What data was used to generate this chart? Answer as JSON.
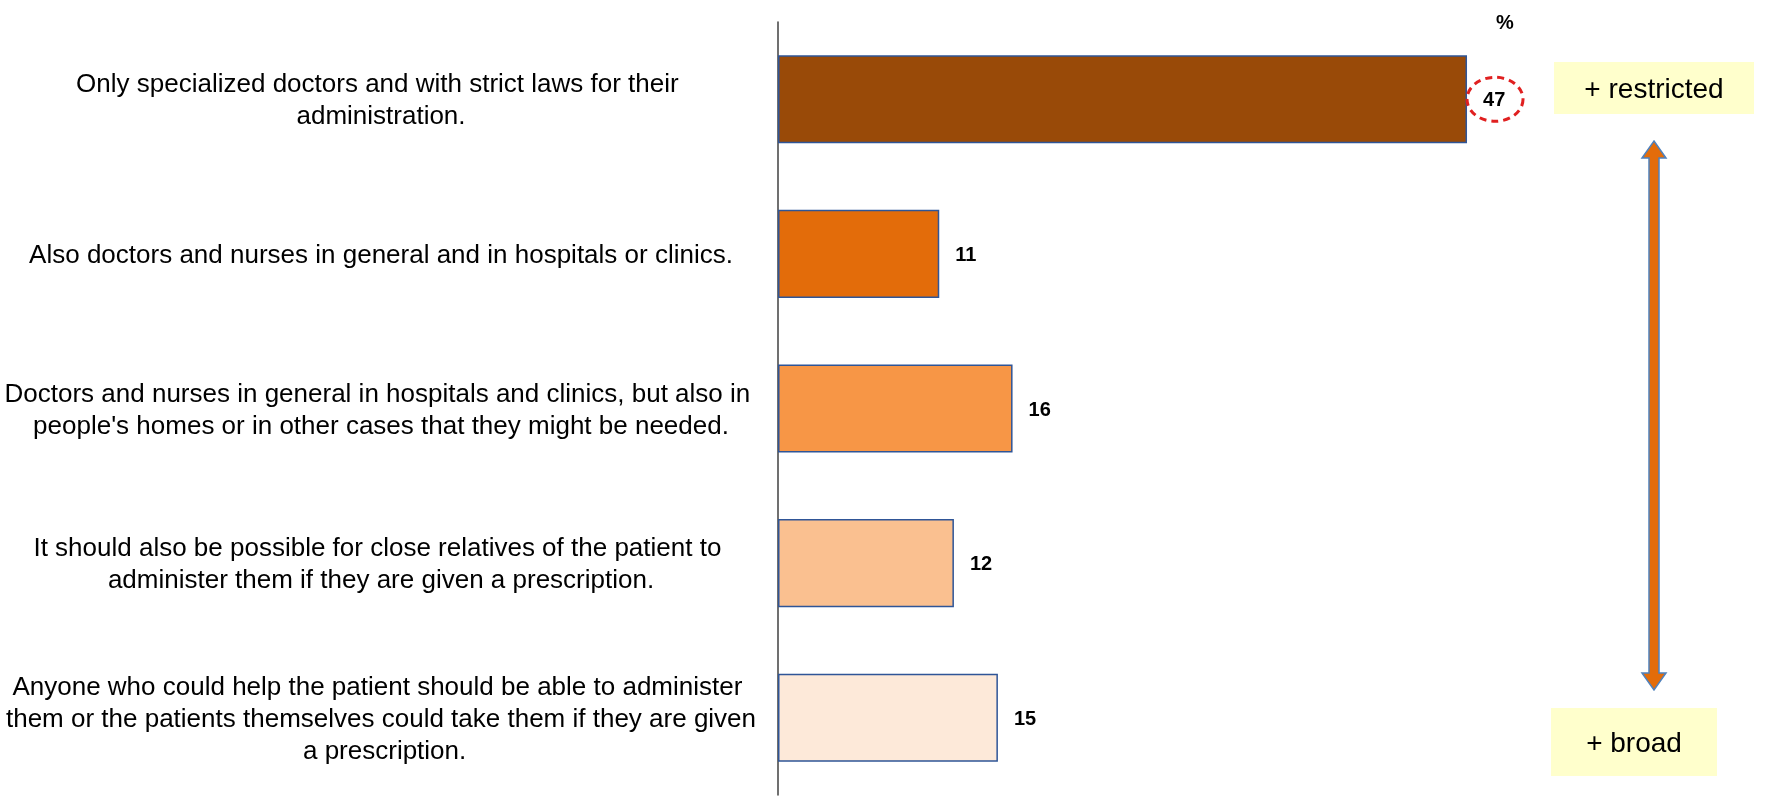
{
  "chart_data": {
    "type": "bar",
    "orientation": "horizontal",
    "categories": [
      "Only specialized doctors and with strict laws for their administration.",
      "Also doctors and nurses in general and in hospitals or clinics.",
      "Doctors and nurses in general in hospitals and clinics, but also in people's homes or in other cases that they might be needed.",
      "It should also be possible for close relatives of the patient to administer them if they are given a prescription.",
      "Anyone who could help the patient should be able to administer them or the patients themselves could take them if they are given a prescription."
    ],
    "values": [
      47,
      11,
      16,
      12,
      15
    ],
    "colors": [
      "#994a08",
      "#e36c0a",
      "#f79646",
      "#fac090",
      "#fde9d9"
    ],
    "data_labels": true,
    "annotations": [
      "%",
      "+ restricted",
      "+ broad"
    ]
  }
}
